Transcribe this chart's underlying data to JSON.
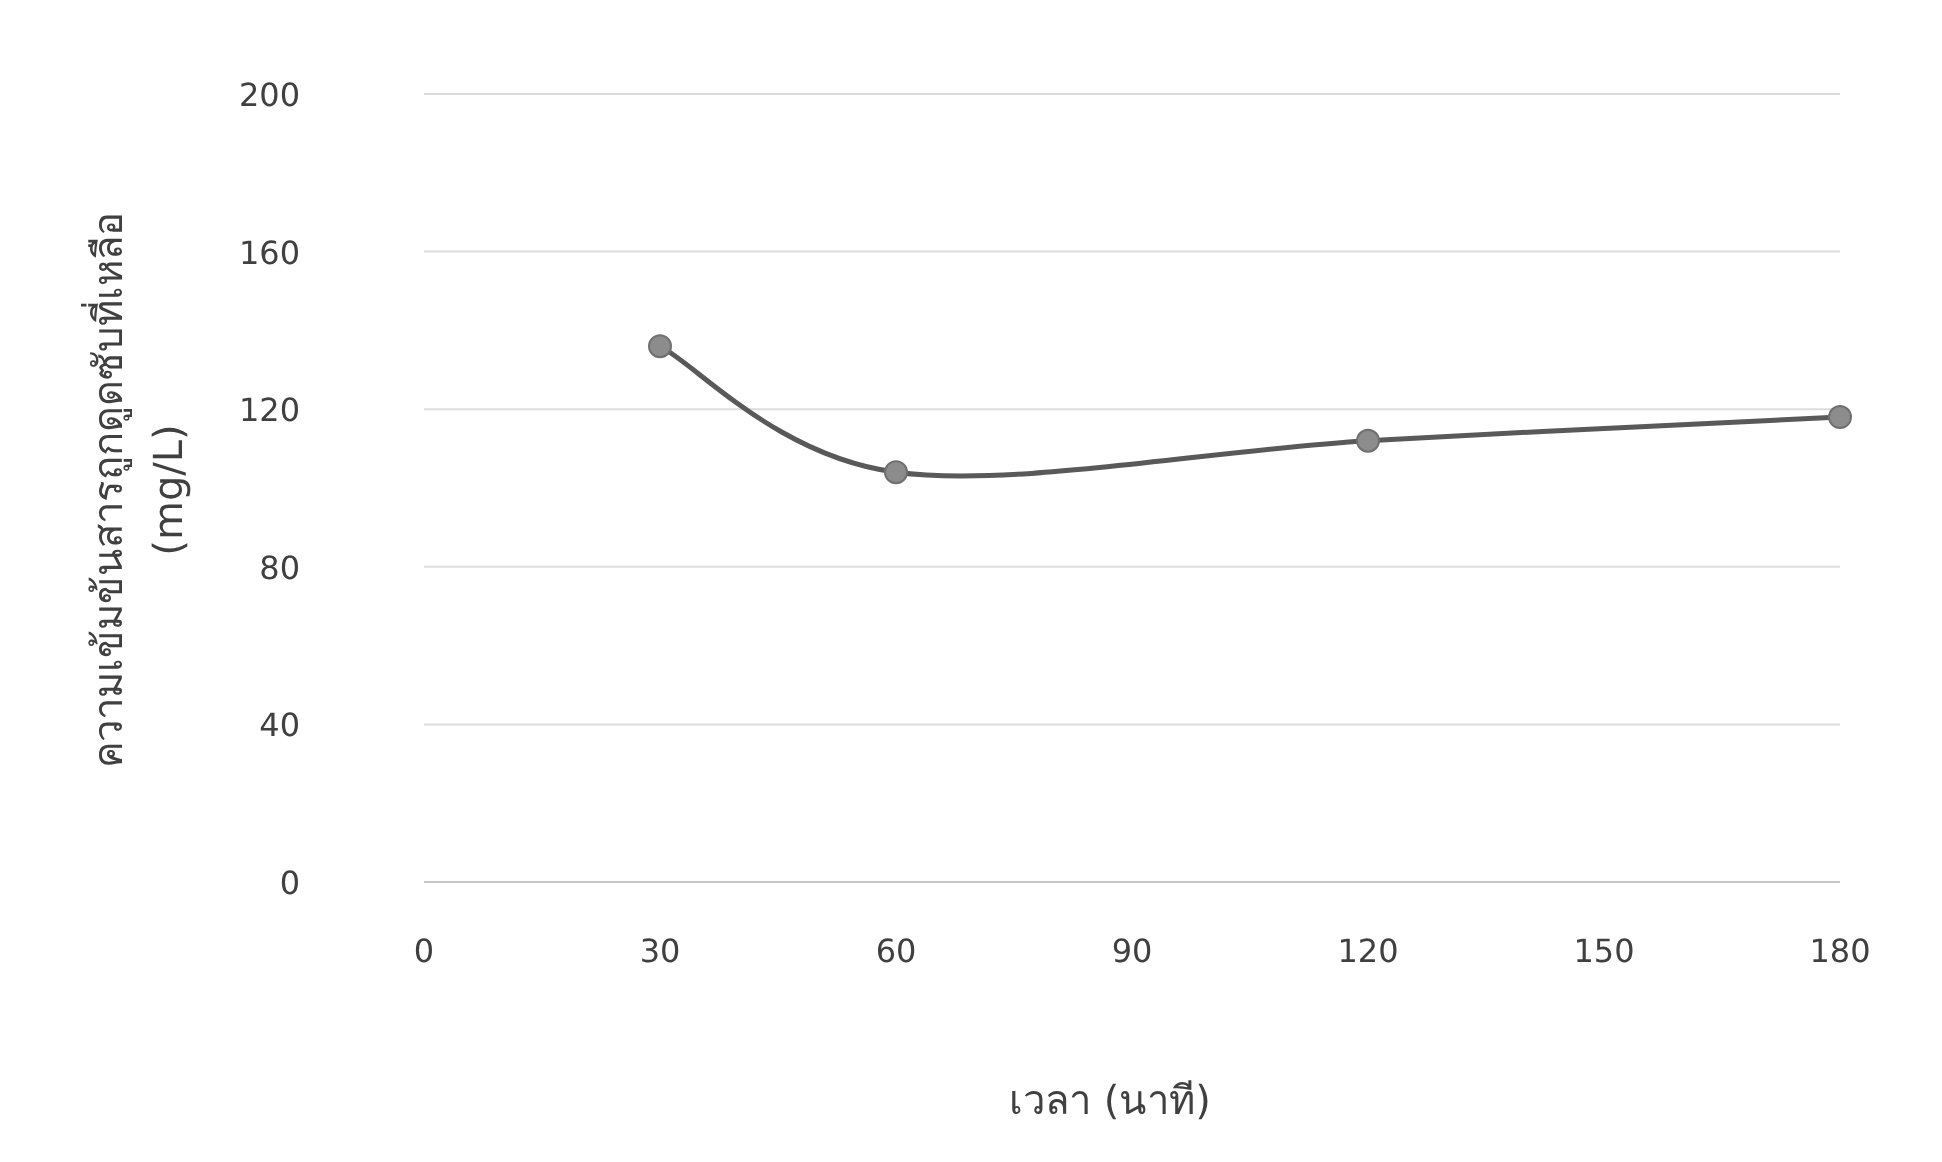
{
  "chart_data": {
    "type": "line",
    "xlabel": "เวลา (นาที)",
    "ylabel": "ความเข้มข้นสารถูกดูดซับที่เหลือ (mg/L)",
    "x": [
      30,
      60,
      120,
      180
    ],
    "series": [
      {
        "color": "#595959",
        "values": [
          136,
          104,
          112,
          118
        ]
      }
    ],
    "xlim": [
      0,
      180
    ],
    "xticks": [
      0,
      30,
      60,
      90,
      120,
      150,
      180
    ],
    "ylim": [
      0,
      200
    ],
    "yticks": [
      0,
      40,
      80,
      120,
      160,
      200
    ],
    "grid": "y",
    "marker": "circle"
  }
}
